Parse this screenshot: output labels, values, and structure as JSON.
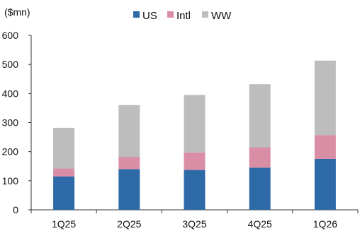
{
  "chart_data": {
    "type": "bar",
    "stacked": true,
    "unit_label": "($mn)",
    "categories": [
      "1Q25",
      "2Q25",
      "3Q25",
      "4Q25",
      "1Q26"
    ],
    "series": [
      {
        "name": "US",
        "color": "#2e6aa8",
        "values": [
          115,
          140,
          137,
          145,
          175
        ]
      },
      {
        "name": "Intl",
        "color": "#d98ea5",
        "values": [
          27,
          42,
          60,
          70,
          82
        ]
      },
      {
        "name": "WW",
        "color": "#bdbdbd",
        "values": [
          140,
          178,
          198,
          217,
          256
        ]
      }
    ],
    "ylim": [
      0,
      600
    ],
    "yticks": [
      0,
      100,
      200,
      300,
      400,
      500,
      600
    ],
    "grid": false,
    "legend_position": "top"
  }
}
